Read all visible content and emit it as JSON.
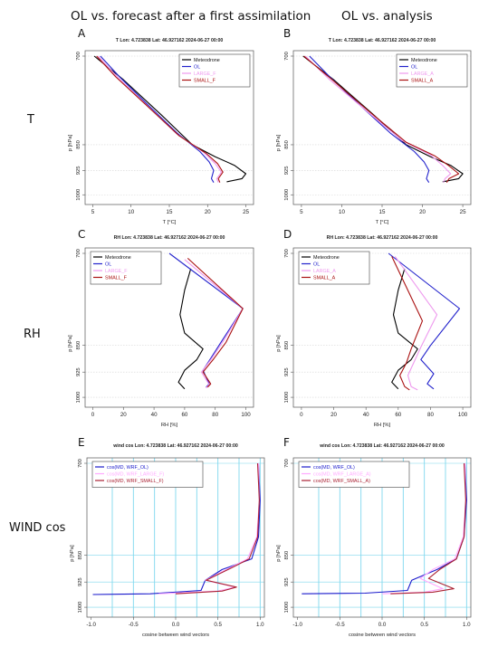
{
  "headings": {
    "left": "OL vs. forecast after a first assimilation",
    "right": "OL vs. analysis"
  },
  "row_labels": {
    "t": "T",
    "rh": "RH",
    "wind": "WIND cos"
  },
  "panel_letters": [
    "A",
    "B",
    "C",
    "D",
    "E",
    "F"
  ],
  "colors": {
    "Meteodrone": "#000000",
    "OL": "#2222cc",
    "LARGE": "#ee99ee",
    "SMALL": "#aa1111",
    "wind_OL": "#1a1acc",
    "wind_LARGE": "#ffaaff",
    "wind_SMALL": "#aa2233",
    "wind_grid": "#7fd8ee"
  },
  "chart_data": [
    {
      "id": "A",
      "type": "line",
      "title": "T Lon: 4.723838 Lat: 46.927162 2024-06-27 00:00",
      "xlabel": "T [°C]",
      "ylabel": "p [hPa]",
      "xlim": [
        4,
        26
      ],
      "xticks": [
        5,
        10,
        15,
        20,
        25
      ],
      "yticks": [
        700,
        850,
        925,
        1000
      ],
      "legend_position": "top-right",
      "series": [
        {
          "name": "Meteodrone",
          "color_key": "Meteodrone",
          "points": [
            [
              5.2,
              700
            ],
            [
              9,
              740
            ],
            [
              14,
              800
            ],
            [
              18,
              850
            ],
            [
              21,
              885
            ],
            [
              23.5,
              910
            ],
            [
              25,
              935
            ],
            [
              24.5,
              950
            ],
            [
              22.5,
              960
            ]
          ]
        },
        {
          "name": "OL",
          "color_key": "OL",
          "points": [
            [
              6,
              700
            ],
            [
              8.5,
              735
            ],
            [
              12,
              780
            ],
            [
              16,
              830
            ],
            [
              19,
              870
            ],
            [
              20.2,
              900
            ],
            [
              20.8,
              925
            ],
            [
              20.5,
              950
            ],
            [
              20.8,
              962
            ]
          ]
        },
        {
          "name": "LARGE_F",
          "color_key": "LARGE",
          "points": [
            [
              5.7,
              700
            ],
            [
              8.2,
              735
            ],
            [
              12,
              782
            ],
            [
              16,
              832
            ],
            [
              19.5,
              872
            ],
            [
              21,
              905
            ],
            [
              21.8,
              930
            ],
            [
              21.2,
              950
            ],
            [
              21.4,
              962
            ]
          ]
        },
        {
          "name": "SMALL_F",
          "color_key": "SMALL",
          "points": [
            [
              5.5,
              700
            ],
            [
              8,
              735
            ],
            [
              12,
              783
            ],
            [
              16.3,
              835
            ],
            [
              19.8,
              875
            ],
            [
              21.3,
              905
            ],
            [
              22,
              930
            ],
            [
              21.4,
              950
            ],
            [
              21.6,
              962
            ]
          ]
        }
      ]
    },
    {
      "id": "B",
      "type": "line",
      "title": "T Lon: 4.723838 Lat: 46.927162 2024-06-27 00:00",
      "xlabel": "T [°C]",
      "ylabel": "p [hPa]",
      "xlim": [
        4,
        26
      ],
      "xticks": [
        5,
        10,
        15,
        20,
        25
      ],
      "yticks": [
        700,
        850,
        925,
        1000
      ],
      "legend_position": "top-right",
      "series": [
        {
          "name": "Meteodrone",
          "color_key": "Meteodrone",
          "points": [
            [
              5.2,
              700
            ],
            [
              9,
              740
            ],
            [
              14,
              800
            ],
            [
              18,
              850
            ],
            [
              21,
              885
            ],
            [
              23.5,
              910
            ],
            [
              25,
              935
            ],
            [
              24.5,
              950
            ],
            [
              22.5,
              960
            ]
          ]
        },
        {
          "name": "OL",
          "color_key": "OL",
          "points": [
            [
              6,
              700
            ],
            [
              8.5,
              735
            ],
            [
              12,
              780
            ],
            [
              16,
              830
            ],
            [
              19,
              870
            ],
            [
              20.2,
              900
            ],
            [
              20.8,
              925
            ],
            [
              20.5,
              950
            ],
            [
              20.8,
              962
            ]
          ]
        },
        {
          "name": "LARGE_A",
          "color_key": "LARGE",
          "points": [
            [
              5.5,
              700
            ],
            [
              8.5,
              740
            ],
            [
              13,
              792
            ],
            [
              17.5,
              843
            ],
            [
              21,
              880
            ],
            [
              22.5,
              910
            ],
            [
              23.5,
              935
            ],
            [
              22.8,
              950
            ],
            [
              22.6,
              962
            ]
          ]
        },
        {
          "name": "SMALL_A",
          "color_key": "SMALL",
          "points": [
            [
              5.3,
              700
            ],
            [
              8.8,
              740
            ],
            [
              13.5,
              795
            ],
            [
              18,
              846
            ],
            [
              21.5,
              882
            ],
            [
              23.2,
              910
            ],
            [
              24.5,
              935
            ],
            [
              23.3,
              950
            ],
            [
              23,
              962
            ]
          ]
        }
      ]
    },
    {
      "id": "C",
      "type": "line",
      "title": "RH Lon: 4.723838 Lat: 46.927162 2024-06-27 00:00",
      "xlabel": "RH [%]",
      "ylabel": "p [hPa]",
      "xlim": [
        -5,
        105
      ],
      "xticks": [
        0,
        20,
        40,
        60,
        80,
        100
      ],
      "yticks": [
        700,
        850,
        925,
        1000
      ],
      "legend_position": "top-left",
      "series": [
        {
          "name": "Meteodrone",
          "color_key": "Meteodrone",
          "points": [
            [
              64,
              725
            ],
            [
              60,
              760
            ],
            [
              57,
              800
            ],
            [
              60,
              830
            ],
            [
              72,
              860
            ],
            [
              68,
              890
            ],
            [
              60,
              920
            ],
            [
              56,
              955
            ],
            [
              60,
              975
            ]
          ]
        },
        {
          "name": "OL",
          "color_key": "OL",
          "points": [
            [
              50,
              700
            ],
            [
              98,
              790
            ],
            [
              85,
              840
            ],
            [
              78,
              880
            ],
            [
              72,
              920
            ],
            [
              76,
              960
            ],
            [
              74,
              970
            ]
          ]
        },
        {
          "name": "LARGE_F",
          "color_key": "LARGE",
          "points": [
            [
              60,
              710
            ],
            [
              98,
              790
            ],
            [
              86,
              840
            ],
            [
              78,
              885
            ],
            [
              71,
              925
            ],
            [
              76,
              962
            ],
            [
              74,
              972
            ]
          ]
        },
        {
          "name": "SMALL_F",
          "color_key": "SMALL",
          "points": [
            [
              62,
              708
            ],
            [
              98,
              790
            ],
            [
              87,
              845
            ],
            [
              79,
              888
            ],
            [
              72,
              925
            ],
            [
              77,
              960
            ],
            [
              75,
              970
            ]
          ]
        }
      ]
    },
    {
      "id": "D",
      "type": "line",
      "title": "RH Lon: 4.723838 Lat: 46.927162 2024-06-27 00:00",
      "xlabel": "RH [%]",
      "ylabel": "p [hPa]",
      "xlim": [
        -5,
        105
      ],
      "xticks": [
        0,
        20,
        40,
        60,
        80,
        100
      ],
      "yticks": [
        700,
        850,
        925,
        1000
      ],
      "legend_position": "top-left",
      "series": [
        {
          "name": "Meteodrone",
          "color_key": "Meteodrone",
          "points": [
            [
              64,
              725
            ],
            [
              60,
              760
            ],
            [
              57,
              800
            ],
            [
              60,
              830
            ],
            [
              72,
              860
            ],
            [
              68,
              890
            ],
            [
              60,
              920
            ],
            [
              56,
              955
            ],
            [
              60,
              975
            ]
          ]
        },
        {
          "name": "OL",
          "color_key": "OL",
          "points": [
            [
              54,
              700
            ],
            [
              98,
              790
            ],
            [
              80,
              850
            ],
            [
              74,
              890
            ],
            [
              82,
              930
            ],
            [
              78,
              960
            ],
            [
              82,
              975
            ]
          ]
        },
        {
          "name": "LARGE_A",
          "color_key": "LARGE",
          "points": [
            [
              58,
              705
            ],
            [
              84,
              800
            ],
            [
              74,
              855
            ],
            [
              70,
              895
            ],
            [
              66,
              935
            ],
            [
              68,
              968
            ],
            [
              72,
              978
            ]
          ]
        },
        {
          "name": "SMALL_A",
          "color_key": "SMALL",
          "points": [
            [
              56,
              705
            ],
            [
              75,
              810
            ],
            [
              68,
              860
            ],
            [
              65,
              900
            ],
            [
              61,
              935
            ],
            [
              64,
              968
            ],
            [
              67,
              978
            ]
          ]
        }
      ]
    },
    {
      "id": "E",
      "type": "line",
      "title": "wind cos Lon: 4.723838 Lat: 46.927162 2024-06-27 00:00",
      "xlabel": "cosine between wind vectors",
      "ylabel": "p [hPa]",
      "xlim": [
        -1.05,
        1.05
      ],
      "xticks": [
        -1.0,
        -0.5,
        0.0,
        0.5,
        1.0
      ],
      "xtick_labels": [
        "-1.0",
        "-0.5",
        "0.0",
        "0.5",
        "1.0"
      ],
      "vgrid": [
        -0.75,
        -0.5,
        -0.25,
        0,
        0.25,
        0.5,
        0.75,
        1.0
      ],
      "yticks": [
        700,
        850,
        925,
        1000
      ],
      "legend_position": "top-left",
      "series": [
        {
          "name": "cos(MD, WRF_OL)",
          "color_key": "wind_OL",
          "points": [
            [
              0.98,
              700
            ],
            [
              1.0,
              760
            ],
            [
              0.98,
              820
            ],
            [
              0.9,
              860
            ],
            [
              0.55,
              890
            ],
            [
              0.35,
              920
            ],
            [
              0.3,
              950
            ],
            [
              -0.3,
              960
            ],
            [
              -0.98,
              962
            ]
          ]
        },
        {
          "name": "cos(MD, WRF_LARGE_F)",
          "color_key": "wind_LARGE",
          "points": [
            [
              0.98,
              700
            ],
            [
              0.99,
              760
            ],
            [
              0.96,
              820
            ],
            [
              0.85,
              860
            ],
            [
              0.6,
              890
            ],
            [
              0.35,
              920
            ],
            [
              0.7,
              940
            ],
            [
              0.5,
              952
            ],
            [
              -0.2,
              960
            ]
          ]
        },
        {
          "name": "cos(MD, WRF_SMALL_F)",
          "color_key": "wind_SMALL",
          "points": [
            [
              0.97,
              700
            ],
            [
              0.99,
              760
            ],
            [
              0.97,
              820
            ],
            [
              0.87,
              860
            ],
            [
              0.62,
              890
            ],
            [
              0.36,
              920
            ],
            [
              0.72,
              940
            ],
            [
              0.55,
              952
            ],
            [
              0.0,
              960
            ]
          ]
        }
      ]
    },
    {
      "id": "F",
      "type": "line",
      "title": "wind cos Lon: 4.723838 Lat: 46.927162 2024-06-27 00:00",
      "xlabel": "cosine between wind vectors",
      "ylabel": "p [hPa]",
      "xlim": [
        -1.05,
        1.05
      ],
      "xticks": [
        -1.0,
        -0.5,
        0.0,
        0.5,
        1.0
      ],
      "xtick_labels": [
        "-1.0",
        "-0.5",
        "0.0",
        "0.5",
        "1.0"
      ],
      "vgrid": [
        -0.75,
        -0.5,
        -0.25,
        0,
        0.25,
        0.5,
        0.75,
        1.0
      ],
      "yticks": [
        700,
        850,
        925,
        1000
      ],
      "legend_position": "top-left",
      "series": [
        {
          "name": "cos(MD, WRF_OL)",
          "color_key": "wind_OL",
          "points": [
            [
              0.98,
              700
            ],
            [
              1.0,
              760
            ],
            [
              0.97,
              820
            ],
            [
              0.88,
              860
            ],
            [
              0.65,
              890
            ],
            [
              0.35,
              920
            ],
            [
              0.3,
              950
            ],
            [
              -0.2,
              958
            ],
            [
              -0.95,
              960
            ]
          ]
        },
        {
          "name": "cos(MD, WRF_LARGE_A)",
          "color_key": "wind_LARGE",
          "points": [
            [
              0.98,
              700
            ],
            [
              0.99,
              760
            ],
            [
              0.96,
              820
            ],
            [
              0.86,
              860
            ],
            [
              0.6,
              890
            ],
            [
              0.45,
              915
            ],
            [
              0.72,
              945
            ],
            [
              0.5,
              955
            ],
            [
              0.0,
              960
            ]
          ]
        },
        {
          "name": "cos(MD, WRF_SMALL_A)",
          "color_key": "wind_SMALL",
          "points": [
            [
              0.97,
              700
            ],
            [
              0.99,
              760
            ],
            [
              0.97,
              820
            ],
            [
              0.88,
              860
            ],
            [
              0.68,
              890
            ],
            [
              0.55,
              915
            ],
            [
              0.85,
              945
            ],
            [
              0.6,
              955
            ],
            [
              0.1,
              960
            ]
          ]
        }
      ]
    }
  ]
}
